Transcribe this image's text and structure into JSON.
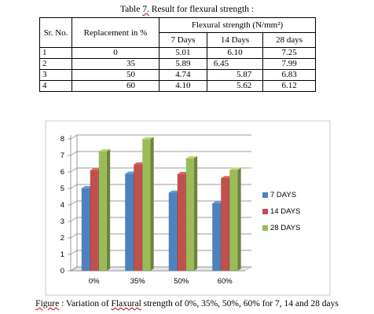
{
  "table": {
    "caption_prefix": "Table ",
    "caption_num": "7.",
    "caption_rest": " Result for flexural strength :",
    "headers": {
      "sr": "Sr. No.",
      "replacement": "Replacement in %",
      "group": "Flexural strength (N/mm²)",
      "days": [
        "7 Days",
        "14 Days",
        "28 days"
      ]
    },
    "rows": [
      {
        "sr": "1",
        "rep": "0",
        "v": [
          "5.01",
          "6.10",
          "7.25"
        ]
      },
      {
        "sr": "2",
        "rep": "35",
        "v": [
          "5.89",
          "6.45",
          "7.99"
        ]
      },
      {
        "sr": "3",
        "rep": "50",
        "v": [
          "4.74",
          "5.87",
          "6.83"
        ]
      },
      {
        "sr": "4",
        "rep": "60",
        "v": [
          "4.10",
          "5.62",
          "6.12"
        ]
      }
    ]
  },
  "chart_data": {
    "type": "bar",
    "categories": [
      "0%",
      "35%",
      "50%",
      "60%"
    ],
    "series": [
      {
        "name": "7 DAYS",
        "values": [
          5.01,
          5.89,
          4.74,
          4.1
        ],
        "color": "#4f81bd"
      },
      {
        "name": "14 DAYS",
        "values": [
          6.1,
          6.45,
          5.87,
          5.62
        ],
        "color": "#c0504d"
      },
      {
        "name": "28 DAYS",
        "values": [
          7.25,
          7.99,
          6.83,
          6.12
        ],
        "color": "#9bbb59"
      }
    ],
    "ylim": [
      0,
      8
    ],
    "yticks": [
      "0",
      "1",
      "2",
      "3",
      "4",
      "5",
      "6",
      "7",
      "8"
    ],
    "grid": true,
    "legend": "right",
    "style": "3d-clustered-column"
  },
  "figure": {
    "caption_word": "Figure",
    "caption_rest": " : Variation of ",
    "caption_word2": "Flaxural",
    "caption_tail": " strength of 0%, 35%, 50%, 60% for 7, 14 and 28 days"
  }
}
